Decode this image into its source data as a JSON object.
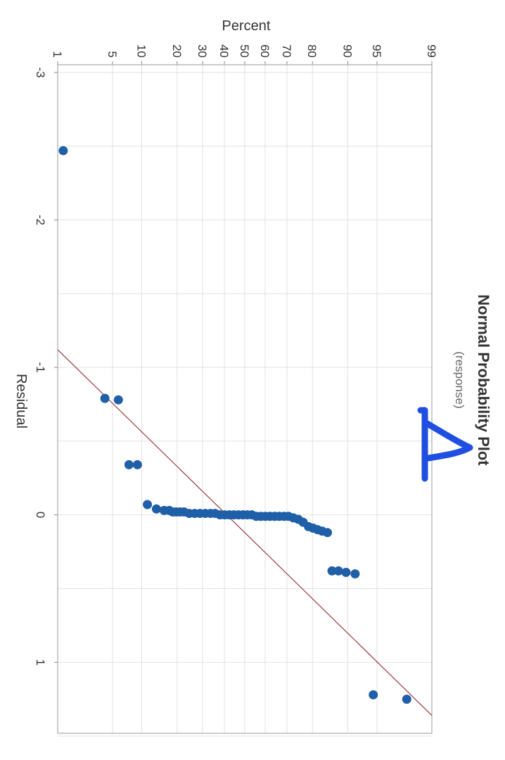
{
  "chart_data": {
    "type": "scatter",
    "title": "Normal Probability Plot",
    "subtitle": "(response)",
    "xlabel": "Residual",
    "ylabel": "Percent",
    "orientation": "rotated-90-clockwise",
    "xlim": [
      -3,
      1.5
    ],
    "x_ticks": [
      -3,
      -2,
      -1,
      0,
      1
    ],
    "x_tick_labels": [
      "-3",
      "-2",
      "-1",
      "0",
      "1"
    ],
    "ylim": [
      1,
      99
    ],
    "y_ticks": [
      1,
      5,
      10,
      20,
      30,
      40,
      50,
      60,
      70,
      80,
      90,
      95,
      99
    ],
    "y_tick_labels": [
      "1",
      "5",
      "10",
      "20",
      "30",
      "40",
      "50",
      "60",
      "70",
      "80",
      "90",
      "95",
      "99"
    ],
    "grid": true,
    "colors": {
      "points": "#1f5fa8",
      "fit_line": "#9b3b3b",
      "annotation": "#1f4fe0",
      "grid": "#e2e2e2"
    },
    "fit_line": {
      "x": [
        -1.12,
        1.36
      ],
      "y": [
        1,
        99
      ]
    },
    "annotation": "1",
    "series": [
      {
        "points": [
          [
            -2.47,
            1.2
          ],
          [
            -0.79,
            4.1
          ],
          [
            -0.78,
            5.8
          ],
          [
            -0.34,
            7.5
          ],
          [
            -0.34,
            9.1
          ],
          [
            -0.07,
            11.3
          ],
          [
            -0.04,
            13.6
          ],
          [
            -0.03,
            15.8
          ],
          [
            -0.03,
            17.4
          ],
          [
            -0.02,
            18.5
          ],
          [
            -0.02,
            19.7
          ],
          [
            -0.02,
            21.0
          ],
          [
            -0.02,
            22.5
          ],
          [
            -0.01,
            24.5
          ],
          [
            -0.01,
            26.7
          ],
          [
            -0.01,
            28.9
          ],
          [
            -0.01,
            31.2
          ],
          [
            -0.01,
            33.5
          ],
          [
            -0.01,
            35.6
          ],
          [
            0.0,
            37.9
          ],
          [
            0.0,
            40.2
          ],
          [
            0.0,
            42.4
          ],
          [
            0.0,
            44.6
          ],
          [
            0.0,
            46.9
          ],
          [
            0.0,
            49.1
          ],
          [
            0.0,
            51.3
          ],
          [
            0.0,
            53.5
          ],
          [
            0.01,
            55.7
          ],
          [
            0.01,
            57.9
          ],
          [
            0.01,
            60.1
          ],
          [
            0.01,
            62.3
          ],
          [
            0.01,
            64.5
          ],
          [
            0.01,
            66.6
          ],
          [
            0.01,
            68.8
          ],
          [
            0.01,
            70.7
          ],
          [
            0.02,
            72.7
          ],
          [
            0.03,
            74.7
          ],
          [
            0.05,
            76.6
          ],
          [
            0.08,
            78.6
          ],
          [
            0.09,
            80.2
          ],
          [
            0.1,
            81.7
          ],
          [
            0.11,
            83.2
          ],
          [
            0.12,
            84.8
          ],
          [
            0.38,
            86.1
          ],
          [
            0.38,
            87.8
          ],
          [
            0.39,
            89.6
          ],
          [
            0.4,
            91.5
          ],
          [
            1.22,
            94.5
          ],
          [
            1.25,
            97.8
          ]
        ]
      }
    ]
  }
}
